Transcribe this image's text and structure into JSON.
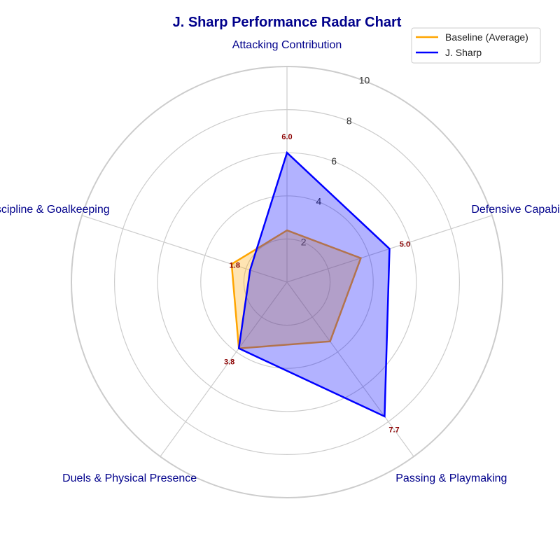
{
  "chart_data": {
    "type": "radar",
    "title": "J. Sharp Performance Radar Chart",
    "categories": [
      "Attacking Contribution",
      "Defensive Capability",
      "Passing & Playmaking",
      "Duels & Physical Presence",
      "Discipline & Goalkeeping"
    ],
    "rlim": [
      0,
      10
    ],
    "rticks": [
      "2",
      "4",
      "6",
      "8",
      "10"
    ],
    "grid": true,
    "legend_position": "top-right",
    "series": [
      {
        "name": "Baseline (Average)",
        "values": [
          2.4,
          3.6,
          3.4,
          3.8,
          2.7
        ],
        "color": "#FFA500",
        "fill": "#FFA500",
        "show_labels": false
      },
      {
        "name": "J. Sharp",
        "values": [
          6.0,
          5.0,
          7.7,
          3.8,
          1.8
        ],
        "color": "#0000FF",
        "fill": "#0000FF",
        "show_labels": true,
        "labels": [
          "6.0",
          "5.0",
          "7.7",
          "3.8",
          "1.8"
        ]
      }
    ],
    "colors": {
      "title": "#00008B",
      "axis_label": "#00008B",
      "data_label": "#8B0000",
      "grid": "#CCCCCC"
    }
  }
}
